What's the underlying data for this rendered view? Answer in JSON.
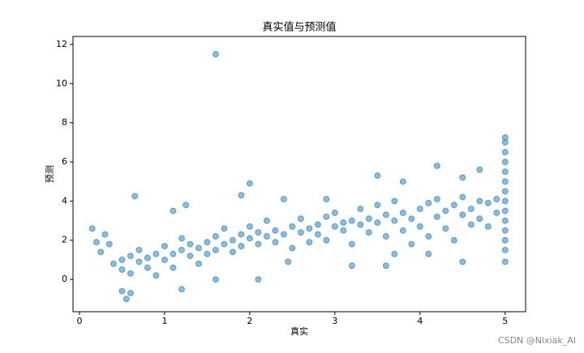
{
  "chart_data": {
    "type": "scatter",
    "title": "真实值与预测值",
    "x_label": "真实",
    "y_label": "预测",
    "watermark": "CSDN @Nixiak_AI",
    "color": "#1f77b4",
    "xlim": [
      -0.076,
      5.24
    ],
    "ylim": [
      -1.65,
      12.41
    ],
    "xticks": [
      0,
      1,
      2,
      3,
      4,
      5
    ],
    "yticks": [
      0,
      2,
      4,
      6,
      8,
      10,
      12
    ],
    "x": [
      1.6,
      0.15,
      0.3,
      0.2,
      0.35,
      0.25,
      0.55,
      0.5,
      0.6,
      0.65,
      1.1,
      1.25,
      1.9,
      2.0,
      2.4,
      2.9,
      3.5,
      3.8,
      4.2,
      4.5,
      4.7,
      4.1,
      4.5,
      3.7,
      3.6,
      2.1,
      2.45,
      3.2,
      1.6,
      1.2,
      0.4,
      0.5,
      0.5,
      0.6,
      0.6,
      0.7,
      0.7,
      0.8,
      0.8,
      0.9,
      0.9,
      1.0,
      1.0,
      1.1,
      1.1,
      1.2,
      1.2,
      1.3,
      1.3,
      1.4,
      1.4,
      1.5,
      1.5,
      1.6,
      1.6,
      1.7,
      1.7,
      1.8,
      1.8,
      1.9,
      1.9,
      2.0,
      2.0,
      2.1,
      2.1,
      2.2,
      2.2,
      2.3,
      2.3,
      2.4,
      2.5,
      2.5,
      2.6,
      2.6,
      2.7,
      2.7,
      2.8,
      2.8,
      2.9,
      2.9,
      3.0,
      3.0,
      3.1,
      3.1,
      3.2,
      3.2,
      3.3,
      3.3,
      3.4,
      3.4,
      3.5,
      3.5,
      3.6,
      3.6,
      3.7,
      3.7,
      3.8,
      3.8,
      3.9,
      3.9,
      4.0,
      4.0,
      4.1,
      4.1,
      4.2,
      4.2,
      4.3,
      4.3,
      4.4,
      4.4,
      4.5,
      4.5,
      4.6,
      4.6,
      4.7,
      4.7,
      4.8,
      4.8,
      4.9,
      4.9,
      5,
      5,
      5,
      5,
      5,
      5,
      5,
      5,
      5,
      5,
      5,
      5,
      5,
      5
    ],
    "values": [
      11.5,
      2.6,
      2.3,
      1.9,
      1.8,
      1.4,
      -1.0,
      -0.6,
      -0.7,
      4.25,
      3.5,
      3.8,
      4.3,
      4.9,
      4.1,
      4.1,
      5.3,
      5.0,
      5.8,
      5.2,
      5.6,
      1.3,
      0.9,
      1.3,
      0.7,
      0.0,
      0.9,
      0.7,
      0.0,
      -0.5,
      0.8,
      1.0,
      0.5,
      1.2,
      0.3,
      0.9,
      1.5,
      0.6,
      1.1,
      1.3,
      0.2,
      1.0,
      1.7,
      1.3,
      0.6,
      1.5,
      2.1,
      1.2,
      1.8,
      1.6,
      0.8,
      1.9,
      1.3,
      2.2,
      1.5,
      1.8,
      2.6,
      2.0,
      1.4,
      2.3,
      1.7,
      2.1,
      2.7,
      1.8,
      2.4,
      2.2,
      3.0,
      1.9,
      2.5,
      2.3,
      2.7,
      1.6,
      2.4,
      3.1,
      2.6,
      1.9,
      2.8,
      2.3,
      3.2,
      2.0,
      2.7,
      3.4,
      2.5,
      2.9,
      3.0,
      1.8,
      2.8,
      3.6,
      2.4,
      3.1,
      2.9,
      3.8,
      2.2,
      3.3,
      3.0,
      4.0,
      2.5,
      3.4,
      3.1,
      1.8,
      3.6,
      2.7,
      3.9,
      2.2,
      3.2,
      4.1,
      2.6,
      3.5,
      3.8,
      2.0,
      3.3,
      4.2,
      2.8,
      3.6,
      3.1,
      4.0,
      2.7,
      3.9,
      3.4,
      4.1,
      0.9,
      1.5,
      2.0,
      2.5,
      3.0,
      3.5,
      4.0,
      4.5,
      5.0,
      5.5,
      6.0,
      6.5,
      7.0,
      7.25
    ]
  }
}
